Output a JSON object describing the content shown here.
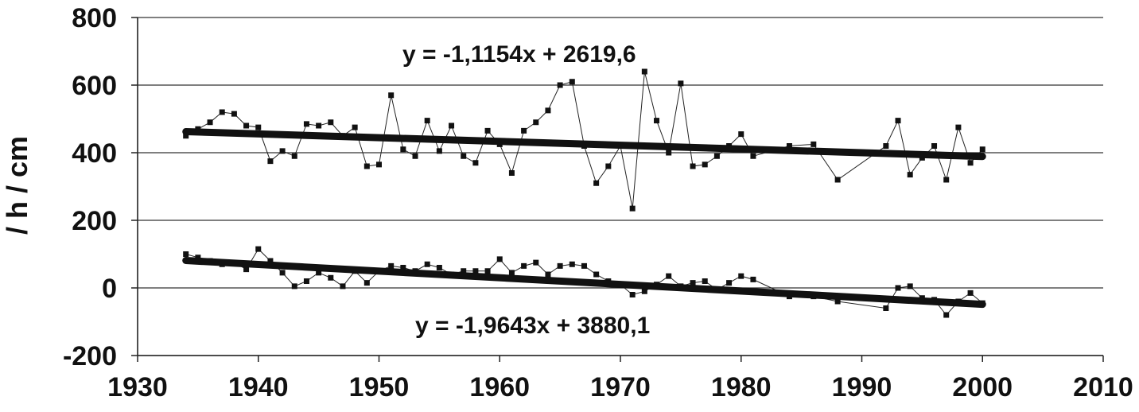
{
  "chart_data": {
    "type": "line",
    "xlabel": "",
    "ylabel": "/ h / cm",
    "xlim": [
      1930,
      2010
    ],
    "ylim": [
      -200,
      800
    ],
    "xticks": [
      1930,
      1940,
      1950,
      1960,
      1970,
      1980,
      1990,
      2000,
      2010
    ],
    "yticks": [
      -200,
      0,
      200,
      400,
      600,
      800
    ],
    "grid": "horizontal",
    "series": [
      {
        "x": [
          1934,
          1935,
          1936,
          1937,
          1938,
          1939,
          1940,
          1941,
          1942,
          1943,
          1944,
          1945,
          1946,
          1947,
          1948,
          1949,
          1950,
          1951,
          1952,
          1953,
          1954,
          1955,
          1956,
          1957,
          1958,
          1959,
          1960,
          1961,
          1962,
          1963,
          1964,
          1965,
          1966,
          1967,
          1968,
          1969,
          1970,
          1971,
          1972,
          1973,
          1974,
          1975,
          1976,
          1977,
          1978,
          1979,
          1980,
          1981,
          1984,
          1986,
          1988,
          1992,
          1993,
          1994,
          1995,
          1996,
          1997,
          1998,
          1999,
          2000
        ],
        "values": [
          450,
          470,
          490,
          520,
          515,
          480,
          475,
          375,
          405,
          390,
          485,
          480,
          490,
          450,
          475,
          360,
          365,
          570,
          410,
          390,
          495,
          405,
          480,
          390,
          370,
          465,
          425,
          340,
          465,
          490,
          525,
          600,
          610,
          420,
          310,
          360,
          420,
          235,
          640,
          495,
          400,
          605,
          360,
          365,
          390,
          420,
          455,
          390,
          420,
          425,
          320,
          420,
          495,
          335,
          385,
          420,
          320,
          475,
          370,
          410
        ],
        "trendline": {
          "slope": -1.1154,
          "intercept": 2619.6,
          "label": "y = -1,1154x + 2619,6"
        }
      },
      {
        "x": [
          1934,
          1935,
          1936,
          1937,
          1938,
          1939,
          1940,
          1941,
          1942,
          1943,
          1944,
          1945,
          1946,
          1947,
          1948,
          1949,
          1950,
          1951,
          1952,
          1953,
          1954,
          1955,
          1956,
          1957,
          1958,
          1959,
          1960,
          1961,
          1962,
          1963,
          1964,
          1965,
          1966,
          1967,
          1968,
          1969,
          1970,
          1971,
          1972,
          1973,
          1974,
          1975,
          1976,
          1977,
          1978,
          1979,
          1980,
          1981,
          1984,
          1986,
          1988,
          1992,
          1993,
          1994,
          1995,
          1996,
          1997,
          1998,
          1999,
          2000
        ],
        "values": [
          100,
          90,
          80,
          70,
          75,
          55,
          115,
          80,
          45,
          5,
          20,
          45,
          30,
          5,
          50,
          15,
          50,
          65,
          60,
          50,
          70,
          60,
          40,
          50,
          50,
          50,
          85,
          45,
          65,
          75,
          40,
          65,
          70,
          65,
          40,
          20,
          10,
          -20,
          -10,
          10,
          35,
          5,
          15,
          20,
          -5,
          15,
          35,
          25,
          -25,
          -25,
          -40,
          -60,
          0,
          5,
          -30,
          -35,
          -80,
          -40,
          -15,
          -45
        ],
        "trendline": {
          "slope": -1.9643,
          "intercept": 3880.1,
          "label": "y = -1,9643x + 3880,1"
        }
      }
    ]
  }
}
